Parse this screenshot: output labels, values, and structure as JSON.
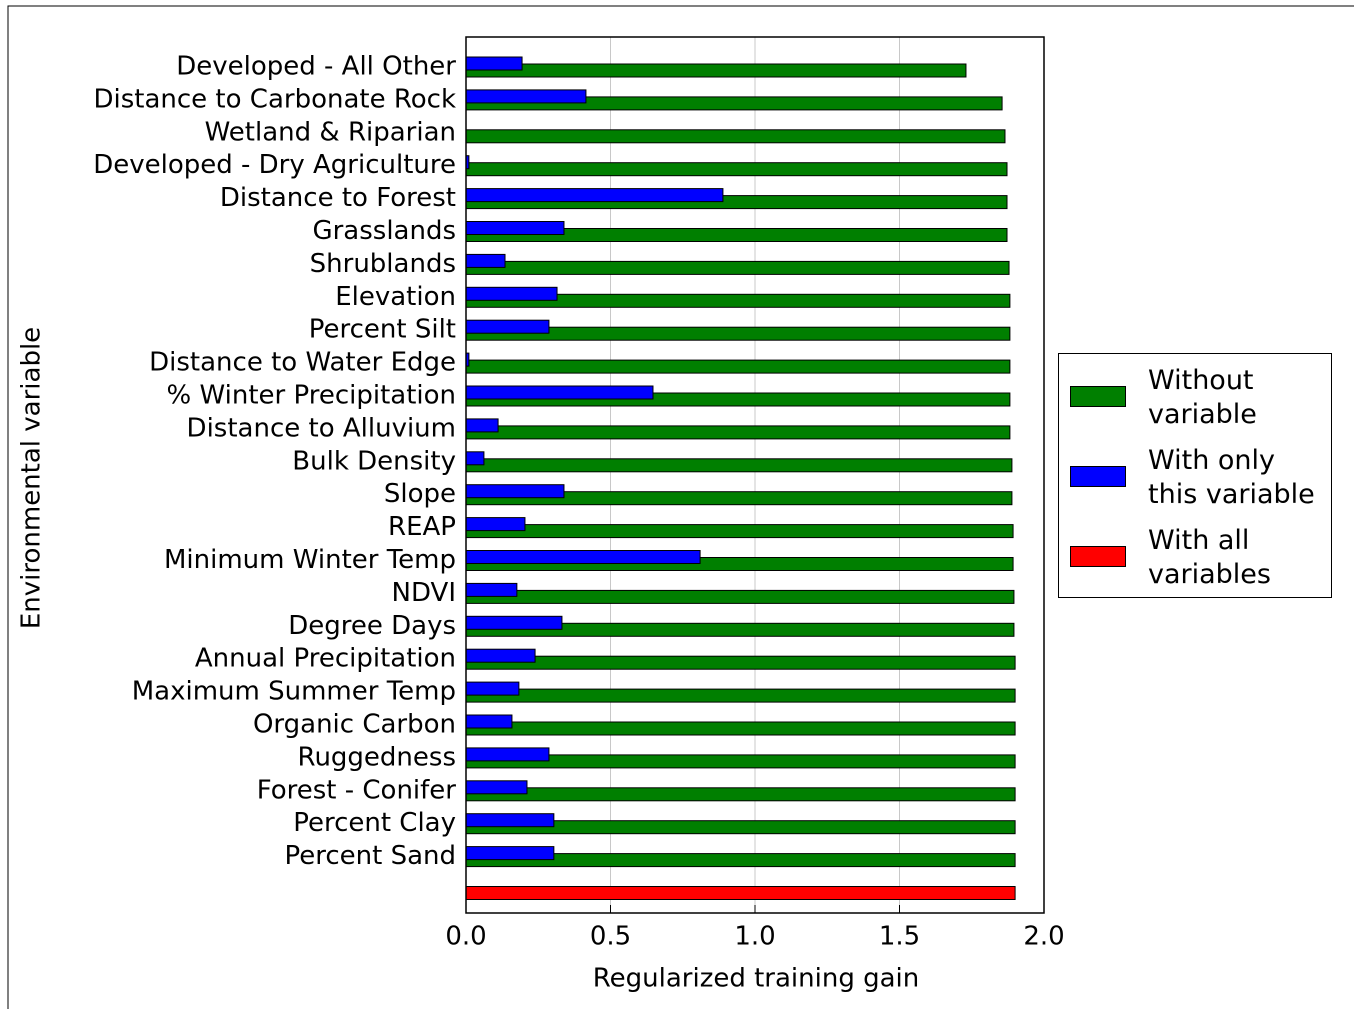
{
  "chart_data": {
    "type": "bar",
    "orientation": "horizontal",
    "xlabel": "Regularized training gain",
    "ylabel": "Environmental variable",
    "categories": [
      "Developed - All Other",
      "Distance to Carbonate Rock",
      "Wetland & Riparian",
      "Developed - Dry Agriculture",
      "Distance to Forest",
      "Grasslands",
      "Shrublands",
      "Elevation",
      "Percent Silt",
      "Distance to Water Edge",
      "% Winter Precipitation",
      "Distance to Alluvium",
      "Bulk Density",
      "Slope",
      "REAP",
      "Minimum Winter Temp",
      "NDVI",
      "Degree Days",
      "Annual Precipitation",
      "Maximum Summer Temp",
      "Organic Carbon",
      "Ruggedness",
      "Forest - Conifer",
      "Percent Clay",
      "Percent Sand",
      null
    ],
    "series": [
      {
        "name": "Without variable",
        "color": "#007f00",
        "values": [
          1.73,
          1.855,
          1.865,
          1.872,
          1.872,
          1.872,
          1.879,
          1.882,
          1.882,
          1.882,
          1.882,
          1.882,
          1.889,
          1.889,
          1.893,
          1.893,
          1.896,
          1.896,
          1.9,
          1.9,
          1.9,
          1.9,
          1.9,
          1.9,
          1.9,
          null
        ]
      },
      {
        "name": "With only this variable",
        "color": "#0000ff",
        "values": [
          0.194,
          0.415,
          0,
          0.01,
          0.889,
          0.339,
          0.135,
          0.315,
          0.287,
          0.01,
          0.647,
          0.111,
          0.062,
          0.339,
          0.204,
          0.81,
          0.176,
          0.332,
          0.239,
          0.183,
          0.159,
          0.287,
          0.211,
          0.304,
          0.304,
          null
        ]
      },
      {
        "name": "With all variables",
        "color": "#ff0000",
        "values": [
          null,
          null,
          null,
          null,
          null,
          null,
          null,
          null,
          null,
          null,
          null,
          null,
          null,
          null,
          null,
          null,
          null,
          null,
          null,
          null,
          null,
          null,
          null,
          null,
          null,
          1.9
        ]
      }
    ],
    "xlim": [
      0,
      2
    ],
    "xticks": [
      {
        "value": 0,
        "label": "0.0"
      },
      0.5,
      {
        "value": 1,
        "label": "1.0"
      },
      1.5,
      {
        "value": 2,
        "label": "2.0"
      }
    ],
    "grid": true,
    "legend": "right"
  }
}
